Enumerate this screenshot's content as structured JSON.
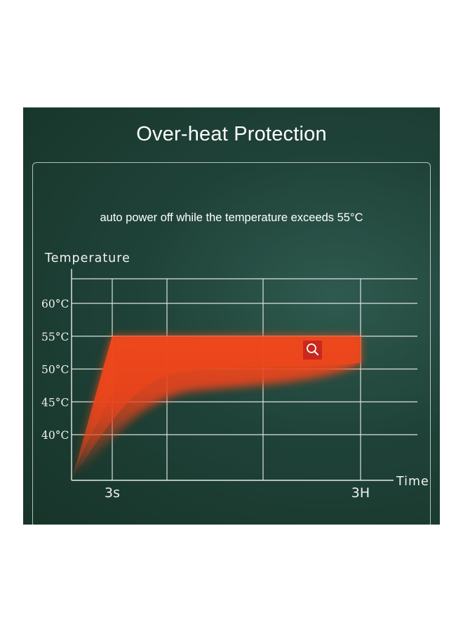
{
  "title": "Over-heat Protection",
  "subtitle": "auto power off while the temperature exceeds 55°C",
  "colors": {
    "panel_bg": "#1f4238",
    "grid": "#d9e3df",
    "band": "#e8441c",
    "icon_bg": "#c8281e"
  },
  "icons": [
    "magnifier-icon"
  ],
  "chart_data": {
    "type": "area",
    "title": "Over-heat Protection",
    "ylabel": "Temperature",
    "xlabel": "Time",
    "y_ticks": [
      "60°C",
      "55°C",
      "50°C",
      "45°C",
      "40°C"
    ],
    "y_tick_values": [
      60,
      55,
      50,
      45,
      40
    ],
    "x_ticks": [
      "3s",
      "3H"
    ],
    "ylim": [
      33,
      64
    ],
    "grid": true,
    "series": [
      {
        "x": [
          "0",
          "3s",
          "3H"
        ],
        "values": [
          33,
          55,
          55
        ]
      }
    ],
    "threshold": 55
  }
}
